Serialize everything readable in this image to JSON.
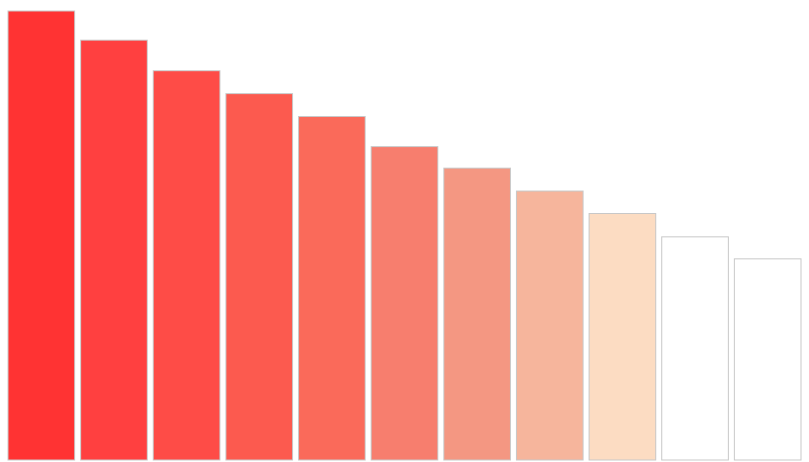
{
  "chart_data": {
    "type": "bar",
    "title": "",
    "xlabel": "",
    "ylabel": "",
    "categories": [
      "",
      "",
      "",
      "",
      "",
      "",
      "",
      "",
      "",
      "",
      ""
    ],
    "values": [
      100,
      93.5,
      86.7,
      81.6,
      76.5,
      69.8,
      65,
      59.9,
      54.9,
      49.7,
      44.8
    ],
    "ylim": [
      0,
      100
    ],
    "grid": false,
    "legend": "none",
    "colors": [
      "#ff3333",
      "#ff4040",
      "#fe4c47",
      "#fc5a4f",
      "#fa6a5a",
      "#f77e6e",
      "#f49782",
      "#f6b59c",
      "#fcdcc2",
      "#ffffff",
      "#ffffff"
    ],
    "bar_edge_color": "#c8c8c8"
  }
}
